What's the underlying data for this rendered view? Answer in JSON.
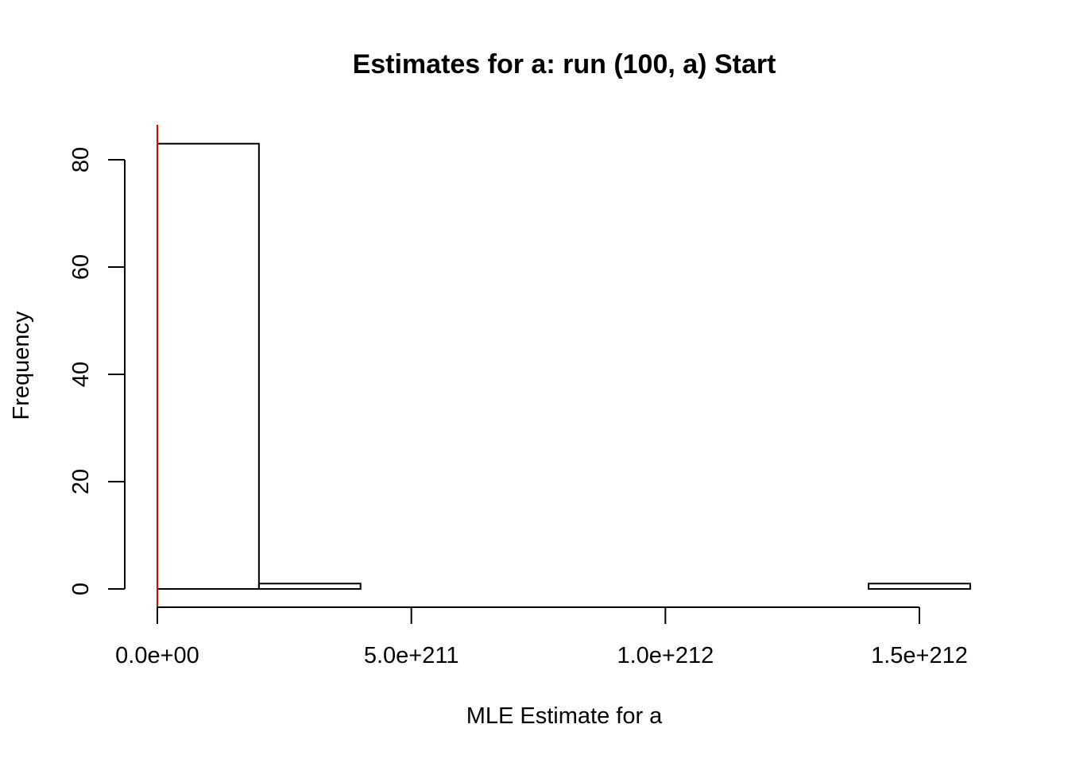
{
  "chart_data": {
    "type": "bar",
    "title": "Estimates for a: run (100, a) Start",
    "xlabel": "MLE Estimate for a",
    "ylabel": "Frequency",
    "bins": [
      {
        "start": 0,
        "end": 2e+211,
        "count": 83
      },
      {
        "start": 2e+211,
        "end": 4e+211,
        "count": 1
      },
      {
        "start": 4e+211,
        "end": 6e+211,
        "count": 0
      },
      {
        "start": 6e+211,
        "end": 8e+211,
        "count": 0
      },
      {
        "start": 8e+211,
        "end": 1e+212,
        "count": 0
      },
      {
        "start": 1e+212,
        "end": 1.2e+212,
        "count": 0
      },
      {
        "start": 1.2e+212,
        "end": 1.4e+212,
        "count": 0
      },
      {
        "start": 1.4e+212,
        "end": 1.6e+212,
        "count": 1
      }
    ],
    "x_ticks": [
      {
        "value": 0,
        "label": "0.0e+00"
      },
      {
        "value": 5e+211,
        "label": "5.0e+211"
      },
      {
        "value": 1e+212,
        "label": "1.0e+212"
      },
      {
        "value": 1.5e+212,
        "label": "1.5e+212"
      }
    ],
    "y_ticks": [
      {
        "value": 0,
        "label": "0"
      },
      {
        "value": 20,
        "label": "20"
      },
      {
        "value": 40,
        "label": "40"
      },
      {
        "value": 60,
        "label": "60"
      },
      {
        "value": 80,
        "label": "80"
      }
    ],
    "xlim": [
      0,
      1.5e+212
    ],
    "ylim": [
      0,
      80
    ],
    "reference_line": {
      "x": 0,
      "color": "#dd0000"
    },
    "bar_fill": "#ffffff",
    "bar_stroke": "#000000",
    "grid": false
  }
}
